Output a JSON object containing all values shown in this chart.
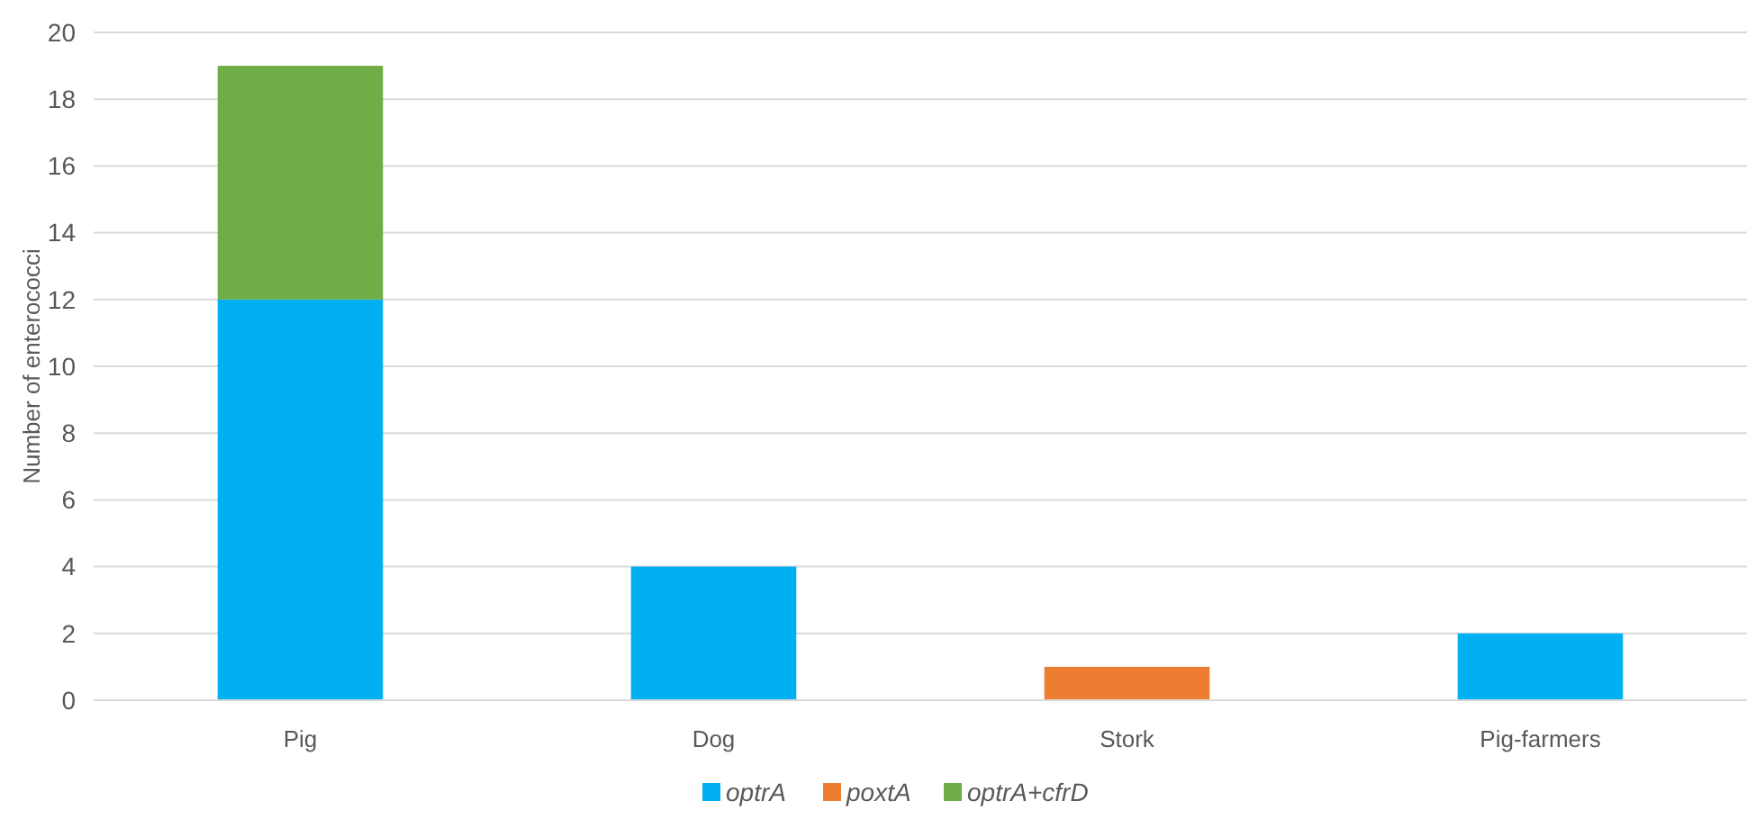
{
  "chart_data": {
    "type": "bar",
    "stacked": true,
    "ylabel": "Number of enterococci",
    "categories": [
      "Pig",
      "Dog",
      "Stork",
      "Pig-farmers"
    ],
    "series": [
      {
        "name": "optrA",
        "color": "#00b0f0",
        "values": [
          12,
          4,
          null,
          2
        ]
      },
      {
        "name": "poxtA",
        "color": "#ed7d31",
        "values": [
          null,
          null,
          1,
          null
        ]
      },
      {
        "name": "optrA+cfrD",
        "color": "#70ad47",
        "values": [
          7,
          null,
          null,
          null
        ]
      }
    ],
    "ylim": [
      0,
      20
    ],
    "yticks": [
      0,
      2,
      4,
      6,
      8,
      10,
      12,
      14,
      16,
      18,
      20
    ],
    "grid": "y",
    "legend": "bottom"
  }
}
